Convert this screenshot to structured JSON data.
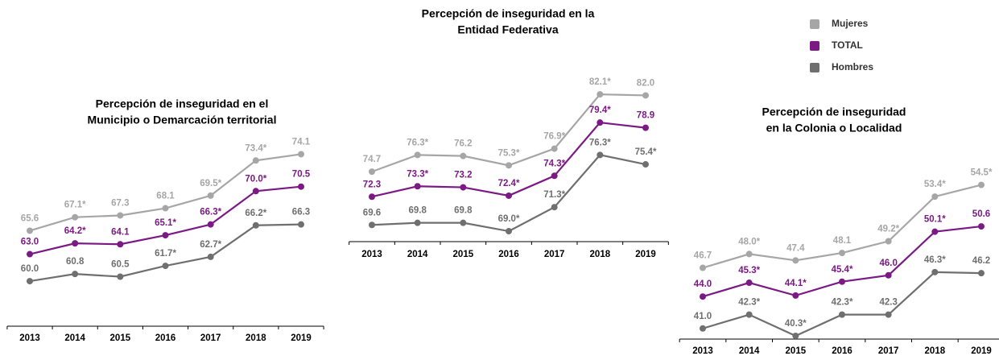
{
  "chart_data": [
    {
      "type": "line",
      "title": [
        "Percepción de inseguridad en el",
        "Municipio o Demarcación territorial"
      ],
      "categories": [
        "2013",
        "2014",
        "2015",
        "2016",
        "2017",
        "2018",
        "2019"
      ],
      "ylim": [
        55,
        76
      ],
      "series": [
        {
          "name": "Mujeres",
          "color": "#a6a6a6",
          "values": [
            65.6,
            67.1,
            67.3,
            68.1,
            69.5,
            73.4,
            74.1
          ],
          "value_labels": [
            "65.6",
            "67.1*",
            "67.3",
            "68.1",
            "69.5*",
            "73.4*",
            "74.1"
          ]
        },
        {
          "name": "TOTAL",
          "color": "#7b1a84",
          "values": [
            63.0,
            64.2,
            64.1,
            65.1,
            66.3,
            70.0,
            70.5
          ],
          "value_labels": [
            "63.0",
            "64.2*",
            "64.1",
            "65.1*",
            "66.3*",
            "70.0*",
            "70.5"
          ]
        },
        {
          "name": "Hombres",
          "color": "#6f6f6f",
          "values": [
            60.0,
            60.8,
            60.5,
            61.7,
            62.7,
            66.2,
            66.3
          ],
          "value_labels": [
            "60.0",
            "60.8",
            "60.5",
            "61.7*",
            "62.7*",
            "66.2*",
            "66.3"
          ]
        }
      ]
    },
    {
      "type": "line",
      "title": [
        "Percepción de inseguridad en la",
        "Entidad Federativa"
      ],
      "categories": [
        "2013",
        "2014",
        "2015",
        "2016",
        "2017",
        "2018",
        "2019"
      ],
      "ylim": [
        68,
        84
      ],
      "legend": "top-right",
      "series": [
        {
          "name": "Mujeres",
          "color": "#a6a6a6",
          "values": [
            74.7,
            76.3,
            76.2,
            75.3,
            76.9,
            82.1,
            82.0
          ],
          "value_labels": [
            "74.7",
            "76.3*",
            "76.2",
            "75.3*",
            "76.9*",
            "82.1*",
            "82.0"
          ]
        },
        {
          "name": "TOTAL",
          "color": "#7b1a84",
          "values": [
            72.3,
            73.3,
            73.2,
            72.4,
            74.3,
            79.4,
            78.9
          ],
          "value_labels": [
            "72.3",
            "73.3*",
            "73.2",
            "72.4*",
            "74.3*",
            "79.4*",
            "78.9"
          ]
        },
        {
          "name": "Hombres",
          "color": "#6f6f6f",
          "values": [
            69.6,
            69.8,
            69.8,
            69.0,
            71.3,
            76.3,
            75.4
          ],
          "value_labels": [
            "69.6",
            "69.8",
            "69.8",
            "69.0*",
            "71.3*",
            "76.3*",
            "75.4*"
          ]
        }
      ]
    },
    {
      "type": "line",
      "title": [
        "Percepción de inseguridad",
        "en la Colonia o Localidad"
      ],
      "categories": [
        "2013",
        "2014",
        "2015",
        "2016",
        "2017",
        "2018",
        "2019"
      ],
      "ylim": [
        40,
        56
      ],
      "series": [
        {
          "name": "Mujeres",
          "color": "#a6a6a6",
          "values": [
            46.7,
            48.0,
            47.4,
            48.1,
            49.2,
            53.4,
            54.5
          ],
          "value_labels": [
            "46.7",
            "48.0*",
            "47.4",
            "48.1",
            "49.2*",
            "53.4*",
            "54.5*"
          ]
        },
        {
          "name": "TOTAL",
          "color": "#7b1a84",
          "values": [
            44.0,
            45.3,
            44.1,
            45.4,
            46.0,
            50.1,
            50.6
          ],
          "value_labels": [
            "44.0",
            "45.3*",
            "44.1*",
            "45.4*",
            "46.0",
            "50.1*",
            "50.6"
          ]
        },
        {
          "name": "Hombres",
          "color": "#6f6f6f",
          "values": [
            41.0,
            42.3,
            40.3,
            42.3,
            42.3,
            46.3,
            46.2
          ],
          "value_labels": [
            "41.0",
            "42.3*",
            "40.3*",
            "42.3*",
            "42.3",
            "46.3*",
            "46.2"
          ]
        }
      ]
    }
  ]
}
